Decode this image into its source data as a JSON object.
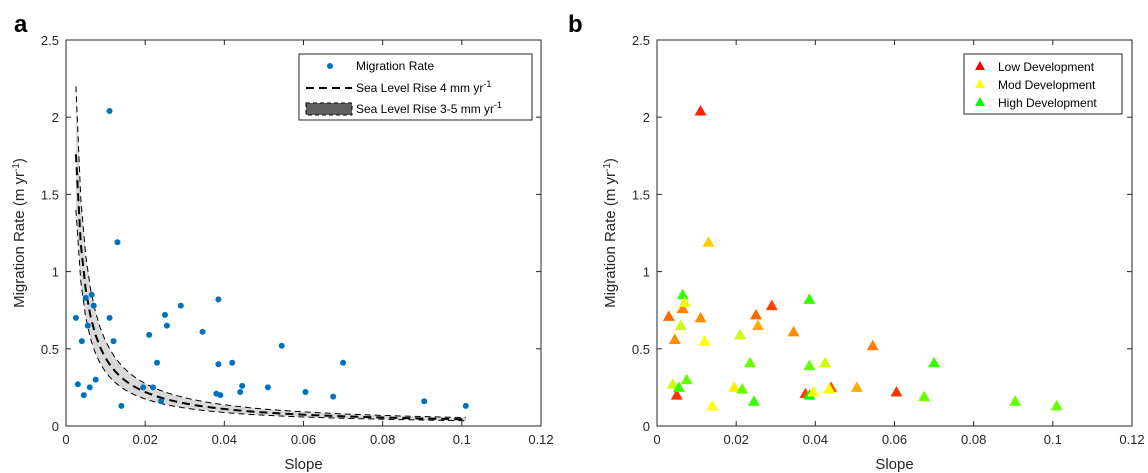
{
  "chart_data": [
    {
      "panel": "a",
      "type": "scatter",
      "xlabel": "Slope",
      "ylabel": "Migration Rate (m yr",
      "ylabel_sup": "-1",
      "ylabel_end": ")",
      "xlim": [
        0,
        0.12
      ],
      "ylim": [
        0,
        2.5
      ],
      "xticks": [
        "0",
        "0.02",
        "0.04",
        "0.06",
        "0.08",
        "0.1",
        "0.12"
      ],
      "yticks": [
        "0",
        "0.5",
        "1",
        "1.5",
        "2",
        "2.5"
      ],
      "grid": false,
      "legend_position": "top-right",
      "series": [
        {
          "name": "Migration Rate",
          "color": "#0072bd",
          "points": [
            [
              0.0025,
              0.7
            ],
            [
              0.003,
              0.27
            ],
            [
              0.004,
              0.55
            ],
            [
              0.0045,
              0.2
            ],
            [
              0.005,
              0.83
            ],
            [
              0.0055,
              0.65
            ],
            [
              0.006,
              0.25
            ],
            [
              0.0065,
              0.85
            ],
            [
              0.007,
              0.78
            ],
            [
              0.0075,
              0.3
            ],
            [
              0.011,
              2.04
            ],
            [
              0.011,
              0.7
            ],
            [
              0.012,
              0.55
            ],
            [
              0.013,
              1.19
            ],
            [
              0.014,
              0.13
            ],
            [
              0.0195,
              0.25
            ],
            [
              0.021,
              0.59
            ],
            [
              0.022,
              0.25
            ],
            [
              0.023,
              0.41
            ],
            [
              0.024,
              0.16
            ],
            [
              0.025,
              0.72
            ],
            [
              0.0255,
              0.65
            ],
            [
              0.029,
              0.78
            ],
            [
              0.0345,
              0.61
            ],
            [
              0.038,
              0.21
            ],
            [
              0.0385,
              0.82
            ],
            [
              0.0385,
              0.4
            ],
            [
              0.039,
              0.2
            ],
            [
              0.042,
              0.41
            ],
            [
              0.044,
              0.22
            ],
            [
              0.0445,
              0.26
            ],
            [
              0.051,
              0.25
            ],
            [
              0.0545,
              0.52
            ],
            [
              0.0605,
              0.22
            ],
            [
              0.0675,
              0.19
            ],
            [
              0.07,
              0.41
            ],
            [
              0.0905,
              0.16
            ],
            [
              0.101,
              0.13
            ]
          ]
        },
        {
          "name": "Sea Level Rise 4 mm yr",
          "name_sup": "-1",
          "color": "#000000",
          "style": "dashed",
          "rate": 0.0044
        },
        {
          "name": "Sea Level Rise 3-5 mm yr",
          "name_sup": "-1",
          "color": "#d9d9d9",
          "style": "band",
          "rate_low": 0.0035,
          "rate_high": 0.0055
        }
      ]
    },
    {
      "panel": "b",
      "type": "scatter",
      "xlabel": "Slope",
      "ylabel": "Migration Rate (m yr",
      "ylabel_sup": "-1",
      "ylabel_end": ")",
      "xlim": [
        0,
        0.12
      ],
      "ylim": [
        0,
        2.5
      ],
      "xticks": [
        "0",
        "0.02",
        "0.04",
        "0.06",
        "0.08",
        "0.1",
        "0.12"
      ],
      "yticks": [
        "0",
        "0.5",
        "1",
        "1.5",
        "2",
        "2.5"
      ],
      "grid": false,
      "legend_position": "top-right",
      "legend": [
        {
          "name": "Low Development",
          "color": "#ff0000"
        },
        {
          "name": "Mod Development",
          "color": "#ffff00"
        },
        {
          "name": "High Development",
          "color": "#00ff00"
        }
      ],
      "points": [
        {
          "x": 0.003,
          "y": 0.71,
          "color": "#ff6a00"
        },
        {
          "x": 0.0045,
          "y": 0.56,
          "color": "#ff8c00"
        },
        {
          "x": 0.005,
          "y": 0.2,
          "color": "#ff3300"
        },
        {
          "x": 0.004,
          "y": 0.27,
          "color": "#ccff00"
        },
        {
          "x": 0.0055,
          "y": 0.25,
          "color": "#33ff00"
        },
        {
          "x": 0.006,
          "y": 0.65,
          "color": "#ccff00"
        },
        {
          "x": 0.0065,
          "y": 0.76,
          "color": "#ff8000"
        },
        {
          "x": 0.0065,
          "y": 0.85,
          "color": "#33ff00"
        },
        {
          "x": 0.007,
          "y": 0.8,
          "color": "#e6ff00"
        },
        {
          "x": 0.0075,
          "y": 0.3,
          "color": "#66ff00"
        },
        {
          "x": 0.011,
          "y": 2.04,
          "color": "#ff2000"
        },
        {
          "x": 0.011,
          "y": 0.7,
          "color": "#ff8c00"
        },
        {
          "x": 0.012,
          "y": 0.55,
          "color": "#ffff00"
        },
        {
          "x": 0.013,
          "y": 1.19,
          "color": "#ffcc00"
        },
        {
          "x": 0.014,
          "y": 0.13,
          "color": "#ffff00"
        },
        {
          "x": 0.0195,
          "y": 0.25,
          "color": "#ffee00"
        },
        {
          "x": 0.021,
          "y": 0.59,
          "color": "#ccff00"
        },
        {
          "x": 0.0215,
          "y": 0.24,
          "color": "#66ff00"
        },
        {
          "x": 0.0235,
          "y": 0.41,
          "color": "#66ff00"
        },
        {
          "x": 0.0245,
          "y": 0.16,
          "color": "#33ff00"
        },
        {
          "x": 0.025,
          "y": 0.72,
          "color": "#ff6a00"
        },
        {
          "x": 0.0255,
          "y": 0.65,
          "color": "#ffaa00"
        },
        {
          "x": 0.029,
          "y": 0.78,
          "color": "#ff4000"
        },
        {
          "x": 0.0345,
          "y": 0.61,
          "color": "#ff8c00"
        },
        {
          "x": 0.0375,
          "y": 0.21,
          "color": "#ff4000"
        },
        {
          "x": 0.0385,
          "y": 0.82,
          "color": "#33ff00"
        },
        {
          "x": 0.0385,
          "y": 0.39,
          "color": "#66ff00"
        },
        {
          "x": 0.0385,
          "y": 0.2,
          "color": "#00ff00"
        },
        {
          "x": 0.0395,
          "y": 0.22,
          "color": "#ffff00"
        },
        {
          "x": 0.0425,
          "y": 0.41,
          "color": "#ccff00"
        },
        {
          "x": 0.044,
          "y": 0.25,
          "color": "#ff5500"
        },
        {
          "x": 0.0435,
          "y": 0.24,
          "color": "#ffff00"
        },
        {
          "x": 0.0505,
          "y": 0.25,
          "color": "#ffaa00"
        },
        {
          "x": 0.0545,
          "y": 0.52,
          "color": "#ff8000"
        },
        {
          "x": 0.0605,
          "y": 0.22,
          "color": "#ff3300"
        },
        {
          "x": 0.0675,
          "y": 0.19,
          "color": "#66ff00"
        },
        {
          "x": 0.07,
          "y": 0.41,
          "color": "#33ff00"
        },
        {
          "x": 0.0905,
          "y": 0.16,
          "color": "#66ff00"
        },
        {
          "x": 0.101,
          "y": 0.13,
          "color": "#66ff00"
        }
      ]
    }
  ]
}
